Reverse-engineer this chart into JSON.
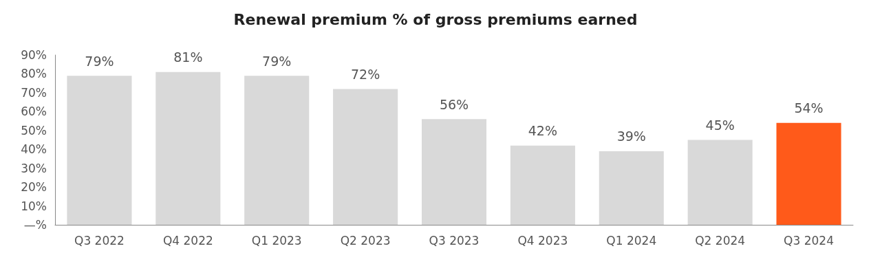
{
  "chart_data": {
    "type": "bar",
    "title": "Renewal premium % of gross premiums earned",
    "categories": [
      "Q3 2022",
      "Q4 2022",
      "Q1 2023",
      "Q2 2023",
      "Q3 2023",
      "Q4 2023",
      "Q1 2024",
      "Q2 2024",
      "Q3 2024"
    ],
    "values": [
      79,
      81,
      79,
      72,
      56,
      42,
      39,
      45,
      54
    ],
    "colors": [
      "#d9d9d9",
      "#d9d9d9",
      "#d9d9d9",
      "#d9d9d9",
      "#d9d9d9",
      "#d9d9d9",
      "#d9d9d9",
      "#d9d9d9",
      "#ff5a1a"
    ],
    "value_labels": [
      "79%",
      "81%",
      "79%",
      "72%",
      "56%",
      "42%",
      "39%",
      "45%",
      "54%"
    ],
    "ylim": [
      0,
      90
    ],
    "yticks": [
      {
        "value": 0,
        "label": "—%"
      },
      {
        "value": 10,
        "label": "10%"
      },
      {
        "value": 20,
        "label": "20%"
      },
      {
        "value": 30,
        "label": "30%"
      },
      {
        "value": 40,
        "label": "40%"
      },
      {
        "value": 50,
        "label": "50%"
      },
      {
        "value": 60,
        "label": "60%"
      },
      {
        "value": 70,
        "label": "70%"
      },
      {
        "value": 80,
        "label": "80%"
      },
      {
        "value": 90,
        "label": "90%"
      }
    ],
    "grid": false
  }
}
